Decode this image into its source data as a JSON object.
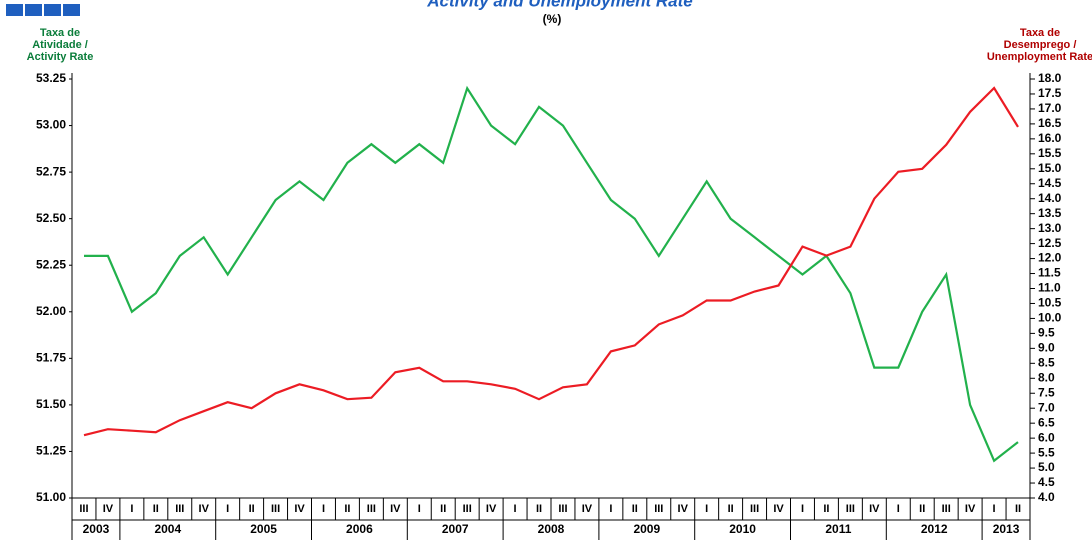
{
  "chart_data": {
    "type": "line",
    "title": "Activity and Unemployment Rate",
    "subtitle": "(%)",
    "y_label": [
      "Taxa de",
      "Atividade /",
      "Activity Rate"
    ],
    "y2_label": [
      "Taxa de",
      "Desemprego /",
      "Unemployment Rate"
    ],
    "categories": [
      "III",
      "IV",
      "I",
      "II",
      "III",
      "IV",
      "I",
      "II",
      "III",
      "IV",
      "I",
      "II",
      "III",
      "IV",
      "I",
      "II",
      "III",
      "IV",
      "I",
      "II",
      "III",
      "IV",
      "I",
      "II",
      "III",
      "IV",
      "I",
      "II",
      "III",
      "IV",
      "I",
      "II",
      "III",
      "IV",
      "I",
      "II",
      "III",
      "IV",
      "I",
      "II"
    ],
    "years": [
      "2003",
      null,
      "2004",
      null,
      null,
      null,
      "2005",
      null,
      null,
      null,
      "2006",
      null,
      null,
      null,
      "2007",
      null,
      null,
      null,
      "2008",
      null,
      null,
      null,
      "2009",
      null,
      null,
      null,
      "2010",
      null,
      null,
      null,
      "2011",
      null,
      null,
      null,
      "2012",
      null,
      null,
      null,
      "2013",
      null
    ],
    "series": [
      {
        "name": "Activity Rate",
        "color": "#22b14c",
        "values": [
          52.3,
          52.3,
          52.0,
          52.1,
          52.3,
          52.4,
          52.2,
          52.4,
          52.6,
          52.7,
          52.6,
          52.8,
          52.9,
          52.8,
          52.9,
          52.8,
          53.2,
          53.0,
          52.9,
          53.1,
          53.0,
          52.8,
          52.6,
          52.5,
          52.3,
          52.5,
          52.7,
          52.5,
          52.4,
          52.3,
          52.2,
          52.3,
          52.1,
          51.7,
          51.7,
          52.0,
          52.2,
          51.5,
          51.2,
          51.3
        ]
      },
      {
        "name": "Unemployment Rate",
        "color": "#ec1c24",
        "axis": "y2",
        "values": [
          6.1,
          6.3,
          6.25,
          6.2,
          6.6,
          6.9,
          7.2,
          7.0,
          7.5,
          7.8,
          7.6,
          7.3,
          7.35,
          8.2,
          8.35,
          7.9,
          7.9,
          7.8,
          7.65,
          7.3,
          7.7,
          7.8,
          8.9,
          9.1,
          9.8,
          10.1,
          10.6,
          10.6,
          10.9,
          11.1,
          12.4,
          12.1,
          12.4,
          14.0,
          14.9,
          15.0,
          15.8,
          16.9,
          17.7,
          16.4
        ]
      }
    ],
    "ylim": [
      51.0,
      53.25
    ],
    "yticks": [
      {
        "value": 51,
        "label": "51.00"
      },
      {
        "value": 51.25,
        "label": "51.25"
      },
      {
        "value": 51.5,
        "label": "51.50"
      },
      {
        "value": 51.75,
        "label": "51.75"
      },
      {
        "value": 52,
        "label": "52.00"
      },
      {
        "value": 52.25,
        "label": "52.25"
      },
      {
        "value": 52.5,
        "label": "52.50"
      },
      {
        "value": 52.75,
        "label": "52.75"
      },
      {
        "value": 53,
        "label": "53.00"
      },
      {
        "value": 53.25,
        "label": "53.25"
      }
    ],
    "y2lim": [
      4.0,
      18.0
    ],
    "y2ticks": [
      {
        "value": 4,
        "label": "4.0"
      },
      4.5,
      {
        "value": 5,
        "label": "5.0"
      },
      5.5,
      {
        "value": 6,
        "label": "6.0"
      },
      6.5,
      {
        "value": 7,
        "label": "7.0"
      },
      7.5,
      {
        "value": 8,
        "label": "8.0"
      },
      8.5,
      {
        "value": 9,
        "label": "9.0"
      },
      9.5,
      {
        "value": 10,
        "label": "10.0"
      },
      10.5,
      {
        "value": 11,
        "label": "11.0"
      },
      11.5,
      {
        "value": 12,
        "label": "12.0"
      },
      12.5,
      {
        "value": 13,
        "label": "13.0"
      },
      13.5,
      {
        "value": 14,
        "label": "14.0"
      },
      14.5,
      {
        "value": 15,
        "label": "15.0"
      },
      15.5,
      {
        "value": 16,
        "label": "16.0"
      },
      16.5,
      {
        "value": 17,
        "label": "17.0"
      },
      17.5,
      {
        "value": 18,
        "label": "18.0"
      }
    ],
    "grid": false
  }
}
